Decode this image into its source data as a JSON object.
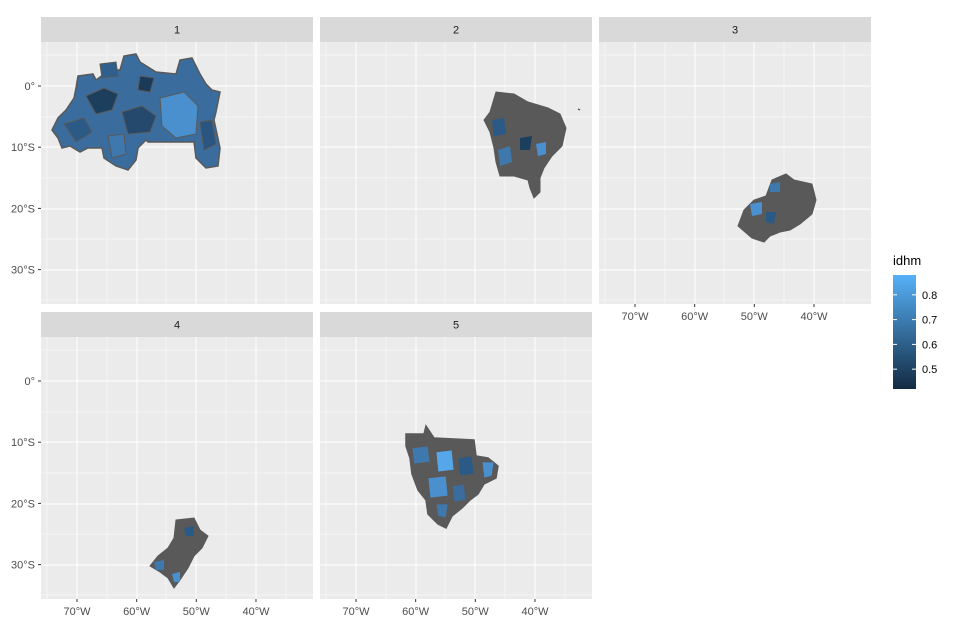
{
  "chart_data": {
    "type": "choropleth-map",
    "layout": "facet-wrap",
    "facets": [
      {
        "label": "1"
      },
      {
        "label": "2"
      },
      {
        "label": "3"
      },
      {
        "label": "4"
      },
      {
        "label": "5"
      }
    ],
    "x_axis": {
      "range": [
        -76,
        -30
      ],
      "ticks": [
        {
          "value": -70,
          "label": "70°W"
        },
        {
          "value": -60,
          "label": "60°W"
        },
        {
          "value": -50,
          "label": "50°W"
        },
        {
          "value": -40,
          "label": "40°W"
        }
      ]
    },
    "y_axis": {
      "range": [
        -36,
        7
      ],
      "ticks": [
        {
          "value": 0,
          "label": "0°"
        },
        {
          "value": -10,
          "label": "10°S"
        },
        {
          "value": -20,
          "label": "20°S"
        },
        {
          "value": -30,
          "label": "30°S"
        }
      ]
    },
    "legend": {
      "title": "idhm",
      "placement": "right",
      "range": [
        0.42,
        0.88
      ],
      "low_color": "#132b43",
      "high_color": "#56b1f7",
      "ticks": [
        {
          "value": 0.5,
          "label": "0.5"
        },
        {
          "value": 0.6,
          "label": "0.6"
        },
        {
          "value": 0.7,
          "label": "0.7"
        },
        {
          "value": 0.8,
          "label": "0.8"
        }
      ]
    },
    "colors": {
      "panel_background": "#ebebeb",
      "strip_background": "#d9d9d9",
      "grid": "#ffffff",
      "boundary": "#595959"
    }
  }
}
